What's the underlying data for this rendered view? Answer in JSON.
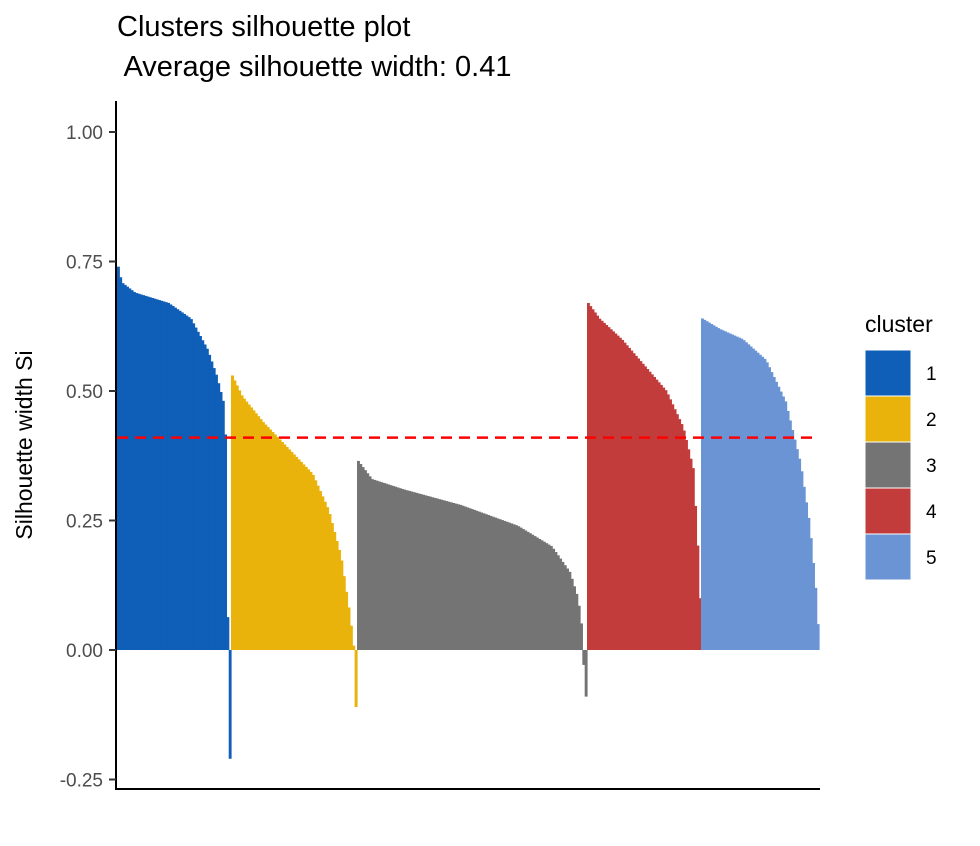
{
  "chart_data": {
    "type": "bar",
    "title": "Clusters silhouette plot",
    "subtitle": " Average silhouette width: 0.41",
    "ylabel": "Silhouette width Si",
    "xlabel": "",
    "ylim": [
      -0.27,
      1.06
    ],
    "yticks": [
      -0.25,
      0.0,
      0.25,
      0.5,
      0.75,
      1.0
    ],
    "ytick_labels": [
      "-0.25",
      "0.00",
      "0.25",
      "0.50",
      "0.75",
      "1.00"
    ],
    "average_line": {
      "value": 0.41,
      "color": "#ff0000",
      "style": "dashed"
    },
    "legend": {
      "title": "cluster",
      "placement": "right"
    },
    "grid": false,
    "series": [
      {
        "name": "1",
        "color": "#0f5fb8",
        "count": 50,
        "profile": [
          [
            0,
            0.74
          ],
          [
            0.03,
            0.71
          ],
          [
            0.15,
            0.69
          ],
          [
            0.45,
            0.67
          ],
          [
            0.65,
            0.64
          ],
          [
            0.8,
            0.58
          ],
          [
            0.88,
            0.53
          ],
          [
            0.94,
            0.48
          ],
          [
            0.97,
            0.38
          ],
          [
            0.98,
            0.05
          ],
          [
            0.985,
            -0.08
          ],
          [
            1,
            -0.21
          ]
        ]
      },
      {
        "name": "2",
        "color": "#e9b30c",
        "count": 53,
        "profile": [
          [
            0,
            0.53
          ],
          [
            0.08,
            0.49
          ],
          [
            0.25,
            0.44
          ],
          [
            0.45,
            0.39
          ],
          [
            0.65,
            0.34
          ],
          [
            0.78,
            0.27
          ],
          [
            0.88,
            0.18
          ],
          [
            0.95,
            0.07
          ],
          [
            0.985,
            0.0
          ],
          [
            1,
            -0.11
          ]
        ]
      },
      {
        "name": "3",
        "color": "#747474",
        "count": 99,
        "profile": [
          [
            0,
            0.365
          ],
          [
            0.06,
            0.33
          ],
          [
            0.2,
            0.31
          ],
          [
            0.45,
            0.28
          ],
          [
            0.7,
            0.24
          ],
          [
            0.85,
            0.2
          ],
          [
            0.93,
            0.15
          ],
          [
            0.965,
            0.1
          ],
          [
            0.98,
            0.05
          ],
          [
            0.985,
            0.0
          ],
          [
            1,
            -0.09
          ]
        ]
      },
      {
        "name": "4",
        "color": "#c13c3b",
        "count": 50,
        "profile": [
          [
            0,
            0.67
          ],
          [
            0.1,
            0.64
          ],
          [
            0.3,
            0.6
          ],
          [
            0.5,
            0.55
          ],
          [
            0.7,
            0.5
          ],
          [
            0.85,
            0.43
          ],
          [
            0.94,
            0.35
          ],
          [
            0.98,
            0.2
          ],
          [
            1,
            0.1
          ]
        ]
      },
      {
        "name": "5",
        "color": "#6a94d4",
        "count": 51,
        "profile": [
          [
            0,
            0.64
          ],
          [
            0.15,
            0.62
          ],
          [
            0.35,
            0.6
          ],
          [
            0.55,
            0.56
          ],
          [
            0.72,
            0.48
          ],
          [
            0.85,
            0.36
          ],
          [
            0.93,
            0.24
          ],
          [
            0.98,
            0.12
          ],
          [
            1,
            0.05
          ]
        ]
      }
    ]
  }
}
